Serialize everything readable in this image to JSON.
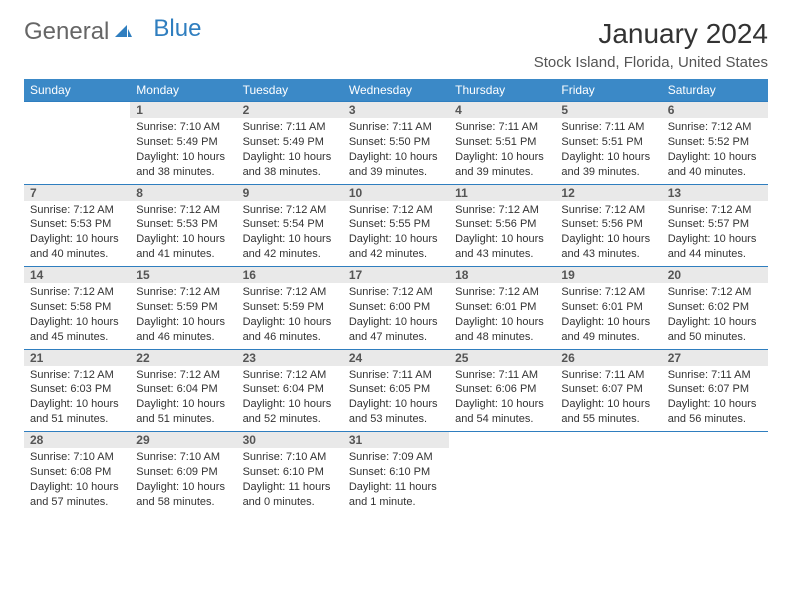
{
  "brand": {
    "part1": "General",
    "part2": "Blue",
    "icon_color": "#2f7ebf"
  },
  "title": "January 2024",
  "location": "Stock Island, Florida, United States",
  "header_bg": "#3b89c7",
  "header_fg": "#ffffff",
  "daynum_bg": "#e9e9e9",
  "border_color": "#2f7ebf",
  "body_font_size": 11,
  "daynum_font_size": 12,
  "title_font_size": 28,
  "location_font_size": 15,
  "weekdays": [
    "Sunday",
    "Monday",
    "Tuesday",
    "Wednesday",
    "Thursday",
    "Friday",
    "Saturday"
  ],
  "first_day_index": 1,
  "days": [
    {
      "n": "1",
      "sunrise": "7:10 AM",
      "sunset": "5:49 PM",
      "daylight": "10 hours and 38 minutes."
    },
    {
      "n": "2",
      "sunrise": "7:11 AM",
      "sunset": "5:49 PM",
      "daylight": "10 hours and 38 minutes."
    },
    {
      "n": "3",
      "sunrise": "7:11 AM",
      "sunset": "5:50 PM",
      "daylight": "10 hours and 39 minutes."
    },
    {
      "n": "4",
      "sunrise": "7:11 AM",
      "sunset": "5:51 PM",
      "daylight": "10 hours and 39 minutes."
    },
    {
      "n": "5",
      "sunrise": "7:11 AM",
      "sunset": "5:51 PM",
      "daylight": "10 hours and 39 minutes."
    },
    {
      "n": "6",
      "sunrise": "7:12 AM",
      "sunset": "5:52 PM",
      "daylight": "10 hours and 40 minutes."
    },
    {
      "n": "7",
      "sunrise": "7:12 AM",
      "sunset": "5:53 PM",
      "daylight": "10 hours and 40 minutes."
    },
    {
      "n": "8",
      "sunrise": "7:12 AM",
      "sunset": "5:53 PM",
      "daylight": "10 hours and 41 minutes."
    },
    {
      "n": "9",
      "sunrise": "7:12 AM",
      "sunset": "5:54 PM",
      "daylight": "10 hours and 42 minutes."
    },
    {
      "n": "10",
      "sunrise": "7:12 AM",
      "sunset": "5:55 PM",
      "daylight": "10 hours and 42 minutes."
    },
    {
      "n": "11",
      "sunrise": "7:12 AM",
      "sunset": "5:56 PM",
      "daylight": "10 hours and 43 minutes."
    },
    {
      "n": "12",
      "sunrise": "7:12 AM",
      "sunset": "5:56 PM",
      "daylight": "10 hours and 43 minutes."
    },
    {
      "n": "13",
      "sunrise": "7:12 AM",
      "sunset": "5:57 PM",
      "daylight": "10 hours and 44 minutes."
    },
    {
      "n": "14",
      "sunrise": "7:12 AM",
      "sunset": "5:58 PM",
      "daylight": "10 hours and 45 minutes."
    },
    {
      "n": "15",
      "sunrise": "7:12 AM",
      "sunset": "5:59 PM",
      "daylight": "10 hours and 46 minutes."
    },
    {
      "n": "16",
      "sunrise": "7:12 AM",
      "sunset": "5:59 PM",
      "daylight": "10 hours and 46 minutes."
    },
    {
      "n": "17",
      "sunrise": "7:12 AM",
      "sunset": "6:00 PM",
      "daylight": "10 hours and 47 minutes."
    },
    {
      "n": "18",
      "sunrise": "7:12 AM",
      "sunset": "6:01 PM",
      "daylight": "10 hours and 48 minutes."
    },
    {
      "n": "19",
      "sunrise": "7:12 AM",
      "sunset": "6:01 PM",
      "daylight": "10 hours and 49 minutes."
    },
    {
      "n": "20",
      "sunrise": "7:12 AM",
      "sunset": "6:02 PM",
      "daylight": "10 hours and 50 minutes."
    },
    {
      "n": "21",
      "sunrise": "7:12 AM",
      "sunset": "6:03 PM",
      "daylight": "10 hours and 51 minutes."
    },
    {
      "n": "22",
      "sunrise": "7:12 AM",
      "sunset": "6:04 PM",
      "daylight": "10 hours and 51 minutes."
    },
    {
      "n": "23",
      "sunrise": "7:12 AM",
      "sunset": "6:04 PM",
      "daylight": "10 hours and 52 minutes."
    },
    {
      "n": "24",
      "sunrise": "7:11 AM",
      "sunset": "6:05 PM",
      "daylight": "10 hours and 53 minutes."
    },
    {
      "n": "25",
      "sunrise": "7:11 AM",
      "sunset": "6:06 PM",
      "daylight": "10 hours and 54 minutes."
    },
    {
      "n": "26",
      "sunrise": "7:11 AM",
      "sunset": "6:07 PM",
      "daylight": "10 hours and 55 minutes."
    },
    {
      "n": "27",
      "sunrise": "7:11 AM",
      "sunset": "6:07 PM",
      "daylight": "10 hours and 56 minutes."
    },
    {
      "n": "28",
      "sunrise": "7:10 AM",
      "sunset": "6:08 PM",
      "daylight": "10 hours and 57 minutes."
    },
    {
      "n": "29",
      "sunrise": "7:10 AM",
      "sunset": "6:09 PM",
      "daylight": "10 hours and 58 minutes."
    },
    {
      "n": "30",
      "sunrise": "7:10 AM",
      "sunset": "6:10 PM",
      "daylight": "11 hours and 0 minutes."
    },
    {
      "n": "31",
      "sunrise": "7:09 AM",
      "sunset": "6:10 PM",
      "daylight": "11 hours and 1 minute."
    }
  ],
  "labels": {
    "sunrise": "Sunrise:",
    "sunset": "Sunset:",
    "daylight": "Daylight:"
  }
}
